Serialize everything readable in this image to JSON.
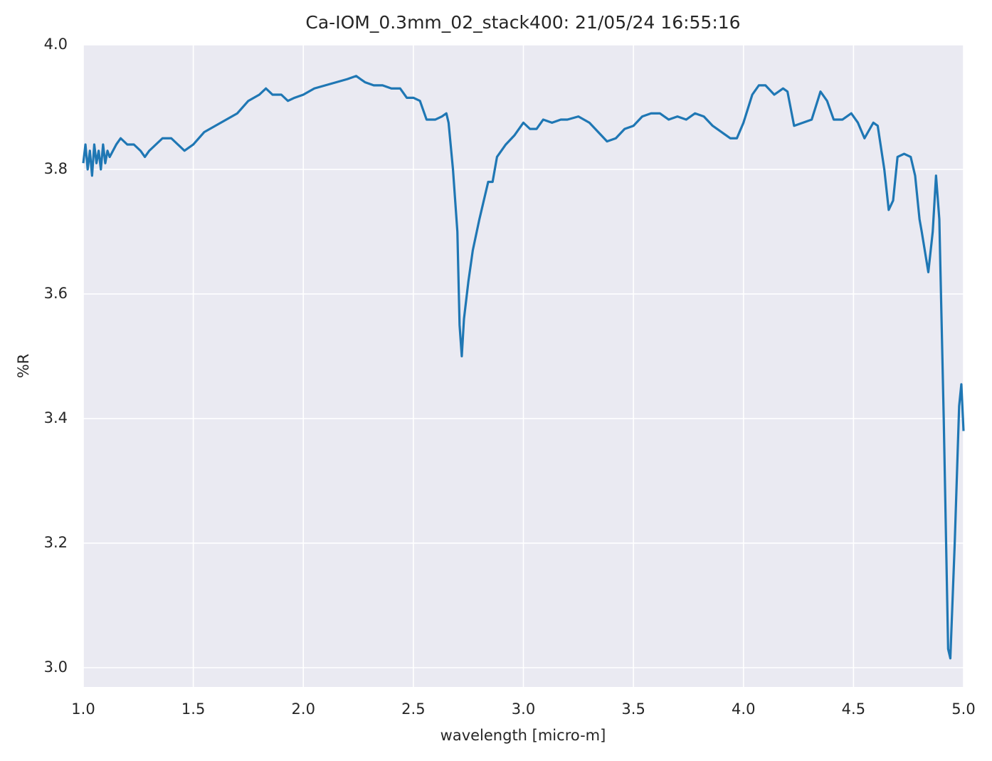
{
  "chart_data": {
    "type": "line",
    "title": "Ca-IOM_0.3mm_02_stack400:  21/05/24 16:55:16",
    "x_label": "wavelength [micro-m]",
    "y_label": "%R",
    "x": [
      1.0,
      1.01,
      1.02,
      1.03,
      1.04,
      1.05,
      1.06,
      1.07,
      1.08,
      1.09,
      1.1,
      1.11,
      1.12,
      1.15,
      1.17,
      1.2,
      1.23,
      1.26,
      1.28,
      1.3,
      1.33,
      1.36,
      1.4,
      1.43,
      1.46,
      1.5,
      1.55,
      1.6,
      1.65,
      1.7,
      1.75,
      1.8,
      1.83,
      1.86,
      1.9,
      1.93,
      1.96,
      2.0,
      2.05,
      2.1,
      2.15,
      2.2,
      2.24,
      2.28,
      2.32,
      2.36,
      2.4,
      2.44,
      2.47,
      2.5,
      2.53,
      2.56,
      2.6,
      2.63,
      2.65,
      2.66,
      2.68,
      2.7,
      2.71,
      2.72,
      2.73,
      2.75,
      2.77,
      2.8,
      2.82,
      2.84,
      2.86,
      2.88,
      2.92,
      2.96,
      3.0,
      3.03,
      3.06,
      3.09,
      3.13,
      3.17,
      3.2,
      3.25,
      3.3,
      3.34,
      3.38,
      3.42,
      3.46,
      3.5,
      3.54,
      3.58,
      3.62,
      3.66,
      3.7,
      3.74,
      3.78,
      3.82,
      3.86,
      3.9,
      3.94,
      3.97,
      4.0,
      4.04,
      4.07,
      4.1,
      4.14,
      4.18,
      4.2,
      4.23,
      4.27,
      4.31,
      4.35,
      4.38,
      4.41,
      4.45,
      4.49,
      4.52,
      4.55,
      4.59,
      4.61,
      4.64,
      4.66,
      4.68,
      4.7,
      4.73,
      4.76,
      4.78,
      4.8,
      4.81,
      4.84,
      4.86,
      4.875,
      4.89,
      4.91,
      4.93,
      4.94,
      4.96,
      4.98,
      4.99,
      5.0
    ],
    "series": [
      {
        "name": "%R",
        "color": "#1f77b4",
        "values": [
          3.81,
          3.84,
          3.8,
          3.83,
          3.79,
          3.84,
          3.81,
          3.83,
          3.8,
          3.84,
          3.81,
          3.83,
          3.82,
          3.84,
          3.85,
          3.84,
          3.84,
          3.83,
          3.82,
          3.83,
          3.84,
          3.85,
          3.85,
          3.84,
          3.83,
          3.84,
          3.86,
          3.87,
          3.88,
          3.89,
          3.91,
          3.92,
          3.93,
          3.92,
          3.92,
          3.91,
          3.915,
          3.92,
          3.93,
          3.935,
          3.94,
          3.945,
          3.95,
          3.94,
          3.935,
          3.935,
          3.93,
          3.93,
          3.915,
          3.915,
          3.91,
          3.88,
          3.88,
          3.885,
          3.89,
          3.875,
          3.8,
          3.7,
          3.55,
          3.5,
          3.56,
          3.62,
          3.67,
          3.72,
          3.75,
          3.78,
          3.78,
          3.82,
          3.84,
          3.855,
          3.875,
          3.865,
          3.865,
          3.88,
          3.875,
          3.88,
          3.88,
          3.885,
          3.875,
          3.86,
          3.845,
          3.85,
          3.865,
          3.87,
          3.885,
          3.89,
          3.89,
          3.88,
          3.885,
          3.88,
          3.89,
          3.885,
          3.87,
          3.86,
          3.85,
          3.85,
          3.875,
          3.92,
          3.935,
          3.935,
          3.92,
          3.93,
          3.925,
          3.87,
          3.875,
          3.88,
          3.925,
          3.91,
          3.88,
          3.88,
          3.89,
          3.875,
          3.85,
          3.875,
          3.87,
          3.8,
          3.735,
          3.75,
          3.82,
          3.825,
          3.82,
          3.79,
          3.72,
          3.7,
          3.635,
          3.7,
          3.79,
          3.72,
          3.4,
          3.03,
          3.015,
          3.2,
          3.42,
          3.455,
          3.38
        ]
      }
    ],
    "xlim": [
      1,
      5
    ],
    "xticks": [
      {
        "value": 1,
        "label": "1.0"
      },
      1.5,
      {
        "value": 2,
        "label": "2.0"
      },
      2.5,
      {
        "value": 3,
        "label": "3.0"
      },
      3.5,
      {
        "value": 4,
        "label": "4.0"
      },
      4.5,
      {
        "value": 5,
        "label": "5.0"
      }
    ],
    "ylim": [
      2.969,
      4.0
    ],
    "yticks": [
      {
        "value": 3,
        "label": "3.0"
      },
      3.2,
      3.4,
      3.6,
      3.8,
      {
        "value": 4,
        "label": "4.0"
      }
    ],
    "grid": true,
    "background": "#eaeaf2"
  }
}
